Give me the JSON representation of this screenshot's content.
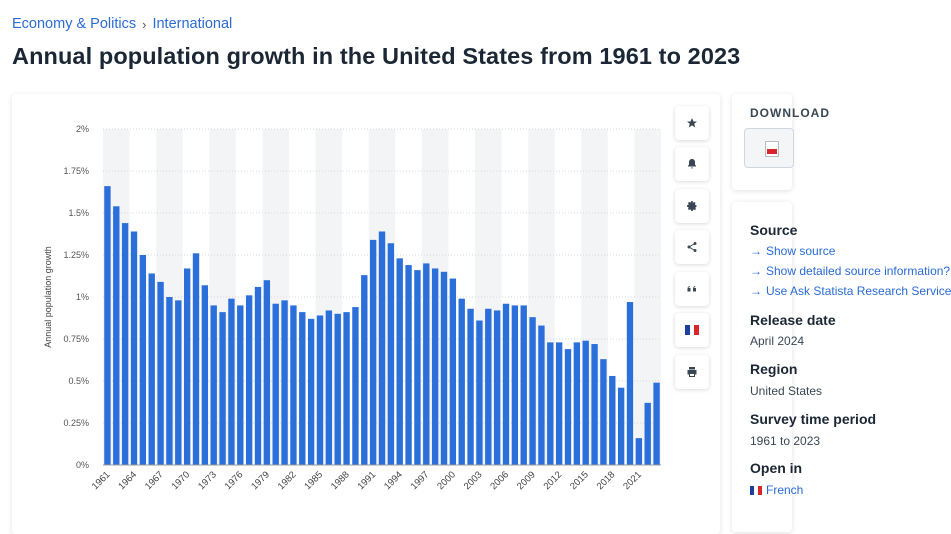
{
  "breadcrumb": {
    "items": [
      "Economy & Politics",
      "International"
    ],
    "separator": "›"
  },
  "page_title": "Annual population growth in the United States from 1961 to 2023",
  "toolbar": {
    "icons": [
      "star-icon",
      "bell-icon",
      "gear-icon",
      "share-icon",
      "quote-icon",
      "flag-icon",
      "print-icon"
    ],
    "flag_colors": [
      "#1f3fa0",
      "#ffffff",
      "#d9262c"
    ]
  },
  "sidebar": {
    "download_title": "DOWNLOAD",
    "source_heading": "Source",
    "source_links": [
      "Show source",
      "Show detailed source information?",
      "Use Ask Statista Research Service"
    ],
    "release_heading": "Release date",
    "release_value": "April 2024",
    "region_heading": "Region",
    "region_value": "United States",
    "survey_heading": "Survey time period",
    "survey_value": "1961 to 2023",
    "open_heading": "Open in",
    "open_value": "French"
  },
  "colors": {
    "bar": "#2b6fdb",
    "link": "#2a6bd6",
    "band": "#f3f4f6",
    "grid": "#d5d9de"
  },
  "chart_data": {
    "type": "bar",
    "title": "Annual population growth in the United States from 1961 to 2023",
    "xlabel": "",
    "ylabel": "Annual population growth",
    "ylim": [
      0,
      2
    ],
    "yticks": [
      0,
      0.25,
      0.5,
      0.75,
      1,
      1.25,
      1.5,
      1.75,
      2
    ],
    "ytick_labels": [
      "0%",
      "0.25%",
      "0.5%",
      "0.75%",
      "1%",
      "1.25%",
      "1.5%",
      "1.75%",
      "2%"
    ],
    "xtick_labels": [
      "1961",
      "1964",
      "1967",
      "1970",
      "1973",
      "1976",
      "1979",
      "1982",
      "1985",
      "1988",
      "1991",
      "1994",
      "1997",
      "2000",
      "2003",
      "2006",
      "2009",
      "2012",
      "2015",
      "2018",
      "2021"
    ],
    "grid": true,
    "categories": [
      "1961",
      "1962",
      "1963",
      "1964",
      "1965",
      "1966",
      "1967",
      "1968",
      "1969",
      "1970",
      "1971",
      "1972",
      "1973",
      "1974",
      "1975",
      "1976",
      "1977",
      "1978",
      "1979",
      "1980",
      "1981",
      "1982",
      "1983",
      "1984",
      "1985",
      "1986",
      "1987",
      "1988",
      "1989",
      "1990",
      "1991",
      "1992",
      "1993",
      "1994",
      "1995",
      "1996",
      "1997",
      "1998",
      "1999",
      "2000",
      "2001",
      "2002",
      "2003",
      "2004",
      "2005",
      "2006",
      "2007",
      "2008",
      "2009",
      "2010",
      "2011",
      "2012",
      "2013",
      "2014",
      "2015",
      "2016",
      "2017",
      "2018",
      "2019",
      "2020",
      "2021",
      "2022",
      "2023"
    ],
    "values": [
      1.66,
      1.54,
      1.44,
      1.39,
      1.25,
      1.14,
      1.09,
      1.0,
      0.98,
      1.17,
      1.26,
      1.07,
      0.95,
      0.91,
      0.99,
      0.95,
      1.01,
      1.06,
      1.1,
      0.96,
      0.98,
      0.95,
      0.91,
      0.87,
      0.89,
      0.92,
      0.9,
      0.91,
      0.94,
      1.13,
      1.34,
      1.39,
      1.32,
      1.23,
      1.19,
      1.16,
      1.2,
      1.17,
      1.15,
      1.11,
      0.99,
      0.93,
      0.86,
      0.93,
      0.92,
      0.96,
      0.95,
      0.95,
      0.88,
      0.83,
      0.73,
      0.73,
      0.69,
      0.73,
      0.74,
      0.72,
      0.63,
      0.53,
      0.46,
      0.97,
      0.16,
      0.37,
      0.49
    ]
  }
}
